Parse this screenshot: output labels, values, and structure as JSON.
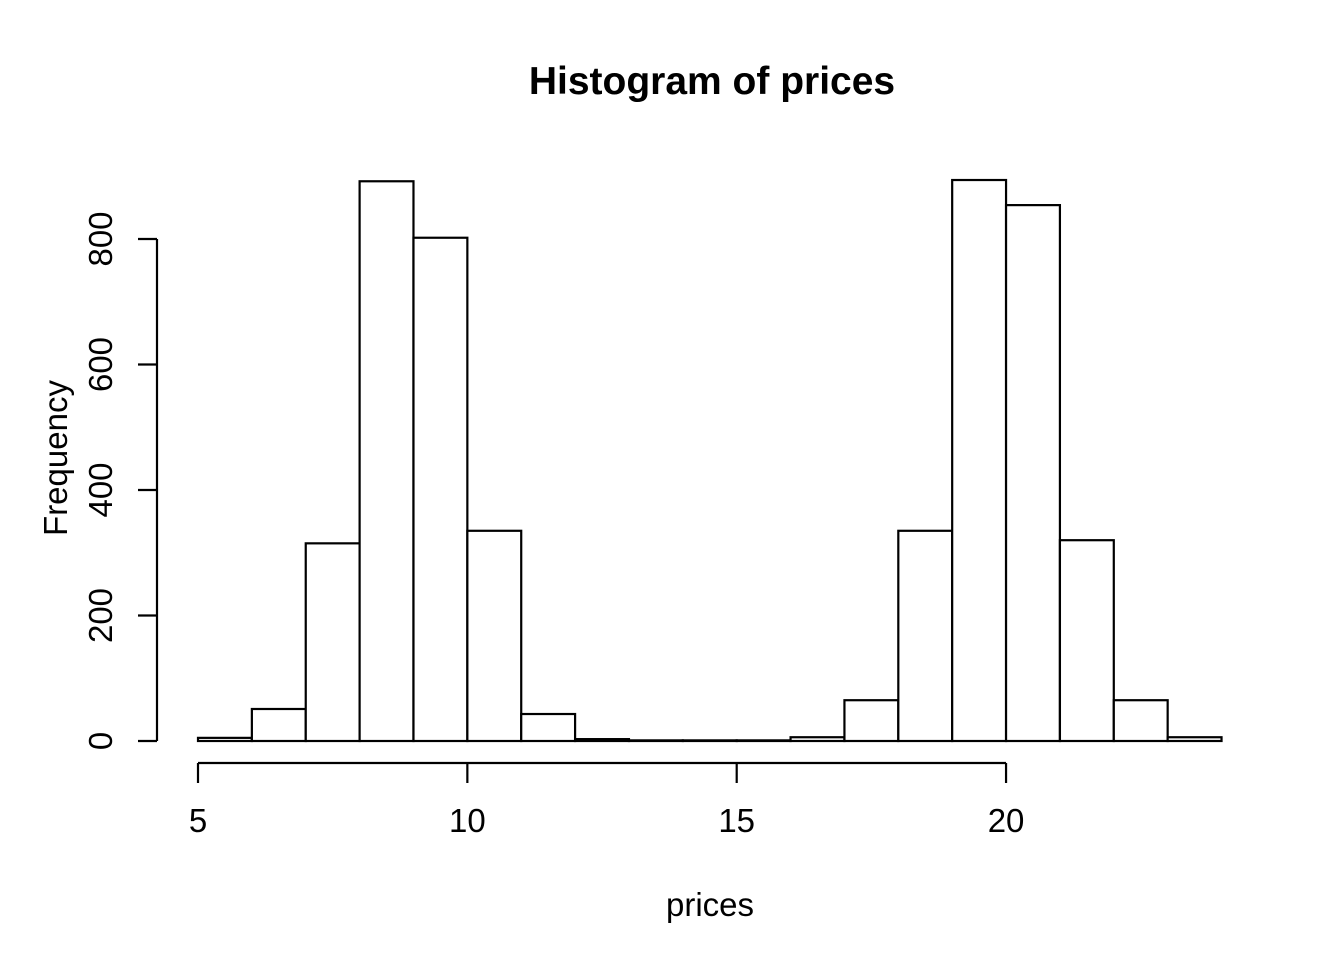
{
  "chart_data": {
    "type": "bar",
    "subtype": "histogram",
    "title": "Histogram of prices",
    "xlabel": "prices",
    "ylabel": "Frequency",
    "bin_start": 5,
    "bin_width": 1,
    "counts": [
      5,
      51,
      315,
      892,
      802,
      335,
      43,
      3,
      1,
      1,
      1,
      6,
      65,
      335,
      894,
      854,
      320,
      65,
      6
    ],
    "bins": [
      {
        "from": 5,
        "to": 6,
        "count": 5
      },
      {
        "from": 6,
        "to": 7,
        "count": 51
      },
      {
        "from": 7,
        "to": 8,
        "count": 315
      },
      {
        "from": 8,
        "to": 9,
        "count": 892
      },
      {
        "from": 9,
        "to": 10,
        "count": 802
      },
      {
        "from": 10,
        "to": 11,
        "count": 335
      },
      {
        "from": 11,
        "to": 12,
        "count": 43
      },
      {
        "from": 12,
        "to": 13,
        "count": 3
      },
      {
        "from": 13,
        "to": 14,
        "count": 1
      },
      {
        "from": 14,
        "to": 15,
        "count": 1
      },
      {
        "from": 15,
        "to": 16,
        "count": 1
      },
      {
        "from": 16,
        "to": 17,
        "count": 6
      },
      {
        "from": 17,
        "to": 18,
        "count": 65
      },
      {
        "from": 18,
        "to": 19,
        "count": 335
      },
      {
        "from": 19,
        "to": 20,
        "count": 894
      },
      {
        "from": 20,
        "to": 21,
        "count": 854
      },
      {
        "from": 21,
        "to": 22,
        "count": 320
      },
      {
        "from": 22,
        "to": 23,
        "count": 65
      },
      {
        "from": 23,
        "to": 24,
        "count": 6
      }
    ],
    "x_ticks": [
      5,
      10,
      15,
      20
    ],
    "x_tick_labels": [
      "5",
      "10",
      "15",
      "20"
    ],
    "y_ticks": [
      0,
      200,
      400,
      600,
      800
    ],
    "y_tick_labels": [
      "0",
      "200",
      "400",
      "600",
      "800"
    ],
    "xlim": [
      5,
      24
    ],
    "ylim": [
      0,
      800
    ],
    "grid": "off",
    "legend": "none",
    "bar_fill": "#ffffff",
    "bar_stroke": "#000000",
    "axis_color": "#000000",
    "background": "#ffffff"
  }
}
